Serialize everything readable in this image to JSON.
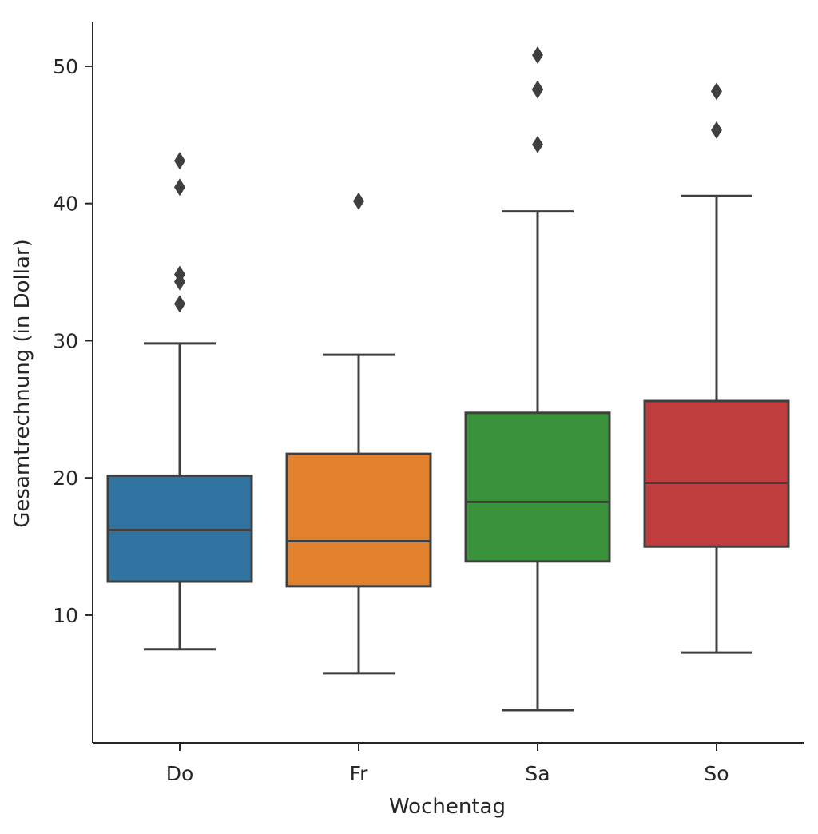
{
  "chart_data": {
    "type": "box",
    "title": "",
    "xlabel": "Wochentag",
    "ylabel": "Gesamtrechnung (in Dollar)",
    "categories": [
      "Do",
      "Fr",
      "Sa",
      "So"
    ],
    "ylim": [
      0.68,
      53.2
    ],
    "yticks": [
      10,
      20,
      30,
      40,
      50
    ],
    "ytick_labels": [
      "10",
      "20",
      "30",
      "40",
      "50"
    ],
    "grid": false,
    "colors": [
      "#3274a1",
      "#e1812c",
      "#3a923a",
      "#c03d3e"
    ],
    "line_color": "#3f3f3f",
    "boxes": [
      {
        "category": "Do",
        "whisker_low": 7.51,
        "q1": 12.44,
        "median": 16.2,
        "q3": 20.16,
        "whisker_high": 29.8,
        "outliers": [
          32.68,
          34.3,
          34.83,
          41.19,
          43.11
        ]
      },
      {
        "category": "Fr",
        "whisker_low": 5.75,
        "q1": 12.1,
        "median": 15.38,
        "q3": 21.75,
        "whisker_high": 28.97,
        "outliers": [
          40.17
        ]
      },
      {
        "category": "Sa",
        "whisker_low": 3.07,
        "q1": 13.91,
        "median": 18.24,
        "q3": 24.74,
        "whisker_high": 39.42,
        "outliers": [
          44.3,
          48.27,
          48.33,
          50.81
        ]
      },
      {
        "category": "So",
        "whisker_low": 7.25,
        "q1": 14.99,
        "median": 19.63,
        "q3": 25.6,
        "whisker_high": 40.55,
        "outliers": [
          45.35,
          48.17
        ]
      }
    ]
  }
}
